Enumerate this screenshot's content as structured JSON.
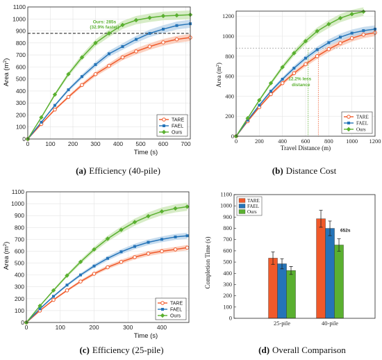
{
  "colors": {
    "TARE": "#f0592a",
    "FAEL": "#2574b8",
    "Ours": "#5ab030",
    "TARE_band": "#f9c3ae",
    "FAEL_band": "#b6d1ea",
    "Ours_band": "#c9e6b4"
  },
  "chart_data": [
    {
      "type": "line",
      "caption_label": "(a)",
      "caption_text": "Efficiency (40-pile)",
      "xlabel": "Time (s)",
      "ylabel": "Area (m",
      "ylabel_sup": "2",
      "ylabel_end": ")",
      "xlim": [
        0,
        720
      ],
      "ylim": [
        0,
        1100
      ],
      "xticks": [
        "0",
        "100",
        "200",
        "300",
        "400",
        "500",
        "600",
        "700"
      ],
      "xtick_values": [
        0,
        100,
        200,
        300,
        400,
        500,
        600,
        700
      ],
      "yticks": [
        "0",
        "100",
        "200",
        "300",
        "400",
        "500",
        "600",
        "700",
        "800",
        "900",
        "1000",
        "1100"
      ],
      "ytick_values": [
        0,
        100,
        200,
        300,
        400,
        500,
        600,
        700,
        800,
        900,
        1000,
        1100
      ],
      "grid": true,
      "legend_position": "bottom-right",
      "x": [
        0,
        60,
        120,
        180,
        240,
        300,
        360,
        420,
        480,
        540,
        600,
        660,
        720
      ],
      "series": [
        {
          "name": "TARE",
          "marker": "circle",
          "values": [
            0,
            125,
            245,
            350,
            450,
            540,
            610,
            680,
            730,
            770,
            805,
            830,
            845
          ]
        },
        {
          "name": "FAEL",
          "marker": "square",
          "values": [
            0,
            140,
            280,
            410,
            520,
            620,
            710,
            770,
            830,
            880,
            915,
            945,
            960
          ]
        },
        {
          "name": "Ours",
          "marker": "diamond",
          "values": [
            0,
            180,
            370,
            540,
            680,
            800,
            880,
            950,
            990,
            1010,
            1025,
            1030,
            1035
          ]
        }
      ],
      "reference_line": {
        "y": 880
      },
      "annotations": [
        {
          "text": "Ours: 285s",
          "x": 340,
          "y": 965
        },
        {
          "text": "(32.9% faster)",
          "x": 340,
          "y": 920
        }
      ]
    },
    {
      "type": "line",
      "caption_label": "(b)",
      "caption_text": "Distance Cost",
      "xlabel": "Travel Distance (m)",
      "ylabel": "Area (m",
      "ylabel_sup": "2",
      "ylabel_end": ")",
      "xlim": [
        0,
        1200
      ],
      "ylim": [
        0,
        1250
      ],
      "xticks": [
        "0",
        "200",
        "400",
        "600",
        "800",
        "1000",
        "1200"
      ],
      "xtick_values": [
        0,
        200,
        400,
        600,
        800,
        1000,
        1200
      ],
      "yticks": [
        "0",
        "200",
        "400",
        "600",
        "800",
        "1000",
        "1200"
      ],
      "ytick_values": [
        0,
        200,
        400,
        600,
        800,
        1000,
        1200
      ],
      "grid": true,
      "legend_position": "bottom-right",
      "series": [
        {
          "name": "TARE",
          "marker": "circle",
          "x": [
            0,
            100,
            200,
            300,
            400,
            500,
            600,
            700,
            800,
            900,
            1000,
            1100,
            1200
          ],
          "values": [
            0,
            150,
            290,
            420,
            530,
            630,
            720,
            800,
            870,
            930,
            980,
            1015,
            1035
          ]
        },
        {
          "name": "FAEL",
          "marker": "square",
          "x": [
            0,
            100,
            200,
            300,
            400,
            500,
            600,
            700,
            800,
            900,
            1000,
            1100,
            1200
          ],
          "values": [
            0,
            160,
            310,
            450,
            570,
            680,
            780,
            865,
            935,
            990,
            1030,
            1055,
            1070
          ]
        },
        {
          "name": "Ours",
          "marker": "diamond",
          "x": [
            0,
            100,
            200,
            300,
            400,
            500,
            600,
            700,
            800,
            900,
            1000,
            1100
          ],
          "values": [
            0,
            180,
            360,
            530,
            690,
            830,
            950,
            1050,
            1120,
            1180,
            1220,
            1245
          ]
        }
      ],
      "reference_line": {
        "y": 880,
        "x_marks": [
          622,
          710
        ]
      },
      "annotations": [
        {
          "text": "12.2% less",
          "x": 550,
          "y": 560
        },
        {
          "text": "distance",
          "x": 560,
          "y": 500
        }
      ]
    },
    {
      "type": "line",
      "caption_label": "(c)",
      "caption_text": "Efficiency (25-pile)",
      "xlabel": "Time (s)",
      "ylabel": "Area (m",
      "ylabel_sup": "2",
      "ylabel_end": ")",
      "xlim": [
        0,
        480
      ],
      "ylim": [
        0,
        1100
      ],
      "xticks": [
        "0",
        "100",
        "200",
        "300",
        "400"
      ],
      "xtick_values": [
        0,
        100,
        200,
        300,
        400
      ],
      "yticks": [
        "0",
        "100",
        "200",
        "300",
        "400",
        "500",
        "600",
        "700",
        "800",
        "900",
        "1000",
        "1100"
      ],
      "ytick_values": [
        0,
        100,
        200,
        300,
        400,
        500,
        600,
        700,
        800,
        900,
        1000,
        1100
      ],
      "grid": true,
      "legend_position": "bottom-right",
      "x": [
        0,
        40,
        80,
        120,
        160,
        200,
        240,
        280,
        320,
        360,
        400,
        440,
        475
      ],
      "series": [
        {
          "name": "TARE",
          "marker": "circle",
          "values": [
            0,
            100,
            190,
            270,
            345,
            410,
            465,
            510,
            550,
            580,
            600,
            615,
            630
          ]
        },
        {
          "name": "FAEL",
          "marker": "square",
          "values": [
            0,
            115,
            220,
            315,
            400,
            475,
            540,
            595,
            640,
            675,
            700,
            720,
            730
          ]
        },
        {
          "name": "Ours",
          "marker": "diamond",
          "values": [
            0,
            140,
            270,
            395,
            510,
            615,
            705,
            780,
            845,
            895,
            935,
            960,
            975
          ]
        }
      ]
    },
    {
      "type": "bar",
      "caption_label": "(d)",
      "caption_text": "Overall Comparison",
      "ylabel": "Completion Time (s)",
      "categories": [
        "25-pile",
        "40-pile"
      ],
      "ylim": [
        0,
        1100
      ],
      "yticks": [
        "0",
        "100",
        "200",
        "300",
        "400",
        "500",
        "600",
        "700",
        "800",
        "900",
        "1000",
        "1100"
      ],
      "ytick_values": [
        0,
        100,
        200,
        300,
        400,
        500,
        600,
        700,
        800,
        900,
        1000,
        1100
      ],
      "grid": false,
      "legend_position": "top-left",
      "series": [
        {
          "name": "TARE",
          "values": [
            535,
            885
          ],
          "errors": [
            55,
            75
          ]
        },
        {
          "name": "FAEL",
          "values": [
            485,
            800
          ],
          "errors": [
            45,
            65
          ]
        },
        {
          "name": "Ours",
          "values": [
            425,
            652
          ],
          "errors": [
            35,
            55
          ]
        }
      ],
      "annotations": [
        {
          "text": "652s",
          "category": "40-pile",
          "series": "Ours"
        }
      ]
    }
  ]
}
